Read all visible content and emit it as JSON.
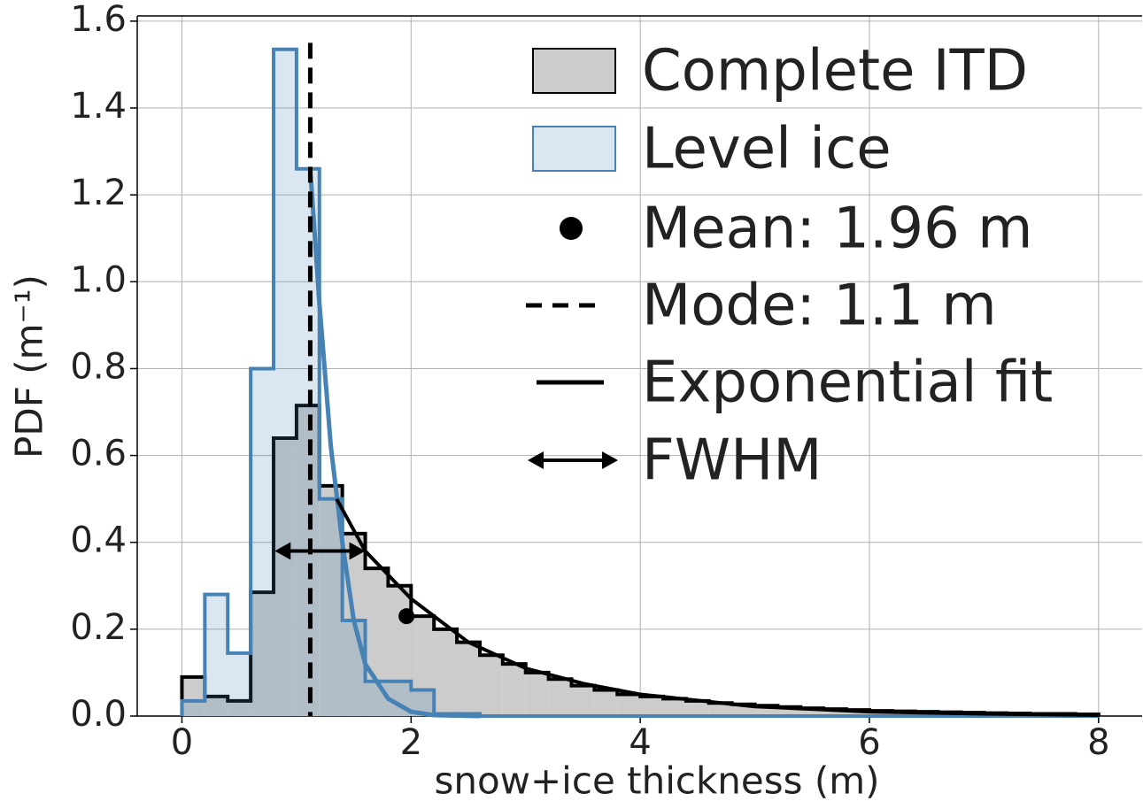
{
  "chart_data": {
    "type": "histogram",
    "xlabel": "snow+ice thickness (m)",
    "ylabel": "PDF (m⁻¹)",
    "bins": [
      0,
      0.2,
      0.4,
      0.6,
      0.8,
      1.0,
      1.2,
      1.4,
      1.6,
      1.8,
      2.0,
      2.2,
      2.4,
      2.6,
      2.8,
      3.0,
      3.2,
      3.4,
      3.6,
      3.8,
      4.0,
      4.2,
      4.4,
      4.6,
      4.8,
      5.0,
      5.2,
      5.4,
      5.6,
      5.8,
      6.0,
      6.2,
      6.4,
      6.6,
      6.8,
      7.0,
      7.2,
      7.4,
      7.6,
      7.8,
      8.0
    ],
    "series": [
      {
        "name": "Complete ITD",
        "color": "#cccccc",
        "edge": "#000000",
        "values": [
          0.09,
          0.045,
          0.035,
          0.285,
          0.64,
          0.715,
          0.53,
          0.42,
          0.34,
          0.3,
          0.23,
          0.2,
          0.17,
          0.14,
          0.12,
          0.1,
          0.085,
          0.07,
          0.06,
          0.05,
          0.045,
          0.04,
          0.035,
          0.03,
          0.027,
          0.024,
          0.021,
          0.018,
          0.016,
          0.014,
          0.012,
          0.011,
          0.01,
          0.009,
          0.008,
          0.007,
          0.006,
          0.005,
          0.005,
          0.004
        ]
      },
      {
        "name": "Level ice",
        "color": "#4682b4",
        "edge": "#4682b4",
        "values": [
          0.035,
          0.28,
          0.145,
          0.8,
          1.535,
          1.26,
          0.5,
          0.22,
          0.08,
          0.08,
          0.06,
          0.005,
          0.005,
          0,
          0,
          0,
          0,
          0,
          0,
          0,
          0,
          0,
          0,
          0,
          0,
          0,
          0,
          0,
          0,
          0,
          0,
          0,
          0,
          0,
          0,
          0,
          0,
          0,
          0,
          0
        ]
      }
    ],
    "level_fit": {
      "color": "#4682b4",
      "x": [
        1.12,
        1.2,
        1.3,
        1.4,
        1.5,
        1.6,
        1.8,
        2.0,
        2.2,
        2.6
      ],
      "y": [
        1.26,
        0.95,
        0.62,
        0.4,
        0.22,
        0.12,
        0.04,
        0.01,
        0.002,
        0
      ]
    },
    "exponential_fit": {
      "label": "Exponential fit",
      "color": "#000000",
      "x": [
        1.35,
        1.6,
        2.0,
        2.5,
        3.0,
        3.5,
        4.0,
        5.0,
        6.0,
        7.0,
        8.0
      ],
      "y": [
        0.5,
        0.38,
        0.27,
        0.17,
        0.11,
        0.075,
        0.05,
        0.022,
        0.01,
        0.005,
        0.002
      ]
    },
    "mean": {
      "label": "Mean: 1.96 m",
      "x": 1.96,
      "y": 0.23
    },
    "mode": {
      "label": "Mode: 1.1 m",
      "x": 1.12
    },
    "fwhm": {
      "label": "FWHM",
      "x": [
        0.81,
        1.6
      ],
      "y": 0.38
    },
    "xlim": [
      -0.39,
      8.38
    ],
    "ylim": [
      0,
      1.612
    ],
    "xticks": [
      0,
      2,
      4,
      6,
      8
    ],
    "yticks": [
      {
        "value": 0,
        "label": "0.0"
      },
      {
        "value": 0.2,
        "label": "0.2"
      },
      {
        "value": 0.4,
        "label": "0.4"
      },
      {
        "value": 0.6,
        "label": "0.6"
      },
      {
        "value": 0.8,
        "label": "0.8"
      },
      {
        "value": 1.0,
        "label": "1.0"
      },
      {
        "value": 1.2,
        "label": "1.2"
      },
      {
        "value": 1.4,
        "label": "1.4"
      },
      {
        "value": 1.6,
        "label": "1.6"
      }
    ],
    "grid": true
  }
}
